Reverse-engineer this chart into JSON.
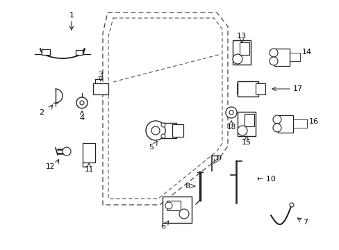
{
  "background_color": "#ffffff",
  "line_color": "#222222",
  "dashed_color": "#555555",
  "fig_w": 4.89,
  "fig_h": 3.6,
  "dpi": 100
}
